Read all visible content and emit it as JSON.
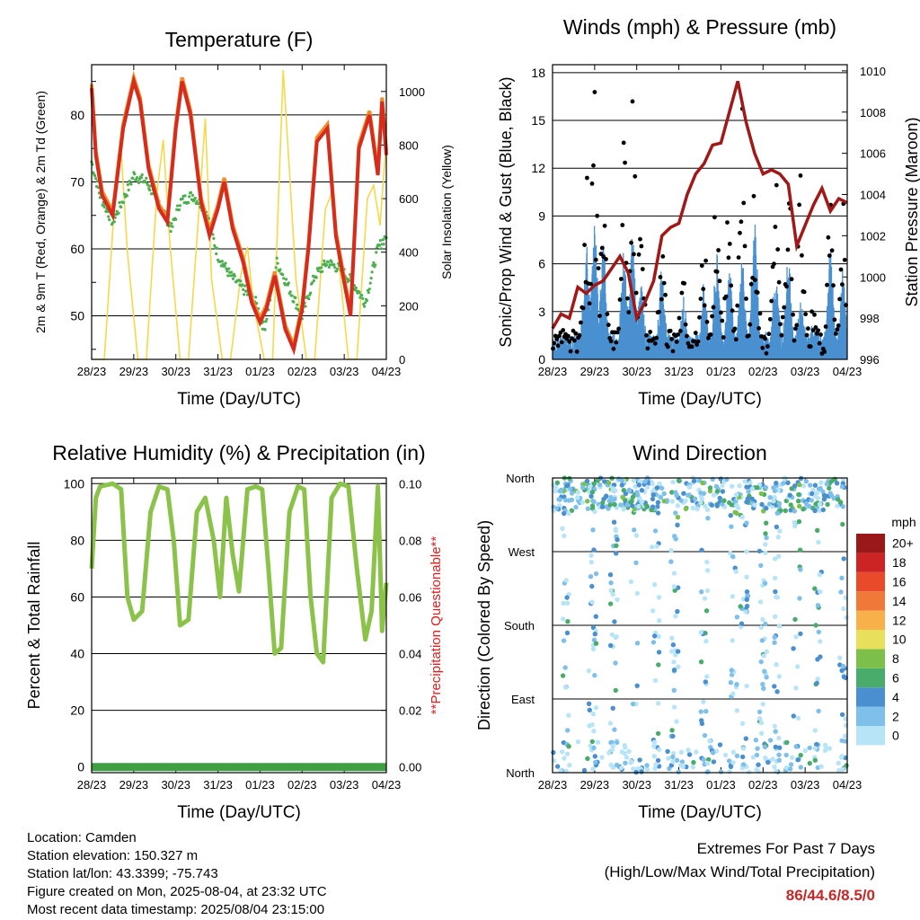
{
  "chart_data": [
    {
      "type": "line",
      "title": "Temperature (F)",
      "xlabel": "Time (Day/UTC)",
      "ylabel": "2m & 9m T (Red, Orange) & 2m Td (Green)",
      "y2label": "Solar Insolation (Yellow)",
      "x_ticks": [
        "28/23",
        "29/23",
        "30/23",
        "31/23",
        "01/23",
        "02/23",
        "03/23",
        "04/23"
      ],
      "ylim": [
        43.5,
        87.5
      ],
      "y_ticks": [
        50,
        60,
        70,
        80
      ],
      "y2lim": [
        0,
        1100
      ],
      "y2_ticks": [
        0,
        200,
        400,
        600,
        800,
        1000
      ],
      "colors": {
        "temp2m": "#d62c1e",
        "temp9m": "#f28c28",
        "dewpoint": "#4caf50",
        "solar": "#f5d94a"
      },
      "series": [
        {
          "key": "temp2m",
          "x": [
            0,
            0.1,
            0.25,
            0.5,
            0.75,
            1.0,
            1.15,
            1.35,
            1.6,
            1.8,
            2.0,
            2.15,
            2.35,
            2.6,
            2.8,
            3.0,
            3.15,
            3.35,
            3.6,
            3.8,
            4.0,
            4.15,
            4.35,
            4.6,
            4.8,
            5.0,
            5.15,
            5.35,
            5.6,
            5.8,
            6.0,
            6.15,
            6.35,
            6.6,
            6.8,
            6.9,
            7.0
          ],
          "values": [
            84,
            74,
            68,
            65,
            78,
            85,
            82,
            72,
            66,
            64,
            78,
            85,
            80,
            67,
            62,
            66,
            70,
            63,
            58,
            52,
            49,
            51,
            56,
            48,
            45,
            51,
            60,
            76,
            78,
            62,
            55,
            50,
            75,
            80,
            71,
            82,
            74
          ]
        },
        {
          "key": "dewpoint",
          "x": [
            0,
            0.2,
            0.5,
            0.8,
            1.0,
            1.3,
            1.6,
            1.9,
            2.1,
            2.4,
            2.7,
            3.0,
            3.3,
            3.6,
            3.9,
            4.1,
            4.4,
            4.7,
            5.0,
            5.3,
            5.6,
            5.9,
            6.2,
            6.5,
            6.8,
            7.0
          ],
          "values": [
            73,
            68,
            64,
            68,
            71,
            70,
            67,
            63,
            67,
            68,
            66,
            59,
            56,
            54,
            52,
            48,
            58,
            54,
            50,
            56,
            58,
            57,
            55,
            52,
            60,
            62
          ]
        },
        {
          "key": "solar",
          "x": [
            0,
            0.3,
            0.55,
            0.7,
            0.85,
            1.1,
            1.3,
            1.55,
            1.7,
            1.85,
            2.1,
            2.3,
            2.55,
            2.7,
            2.85,
            3.1,
            3.3,
            3.55,
            3.7,
            3.85,
            4.1,
            4.3,
            4.55,
            4.7,
            4.85,
            5.1,
            5.3,
            5.55,
            5.7,
            5.85,
            6.1,
            6.3,
            6.55,
            6.7,
            6.85,
            7.0
          ],
          "values": [
            0,
            0,
            600,
            780,
            400,
            0,
            0,
            620,
            820,
            450,
            0,
            0,
            560,
            900,
            300,
            0,
            0,
            320,
            420,
            200,
            0,
            0,
            1080,
            700,
            300,
            0,
            0,
            560,
            620,
            400,
            0,
            0,
            600,
            650,
            500,
            820
          ]
        }
      ]
    },
    {
      "type": "scatter",
      "title": "Winds (mph) & Pressure (mb)",
      "xlabel": "Time (Day/UTC)",
      "ylabel": "Sonic/Prop Wind & Gust (Blue, Black)",
      "y2label": "Station Pressure (Maroon)",
      "x_ticks": [
        "28/23",
        "29/23",
        "30/23",
        "31/23",
        "01/23",
        "02/23",
        "03/23",
        "04/23"
      ],
      "ylim": [
        0,
        18.5
      ],
      "y_ticks": [
        0,
        3,
        6,
        9,
        12,
        15,
        18
      ],
      "y2lim": [
        996,
        1010.3
      ],
      "y2_ticks": [
        996,
        998,
        1000,
        1002,
        1004,
        1006,
        1008,
        1010
      ],
      "colors": {
        "wind": "#4a90d0",
        "gust": "#000000",
        "pressure": "#a01818"
      },
      "series": [
        {
          "key": "pressure",
          "x": [
            0,
            0.2,
            0.4,
            0.6,
            0.8,
            1.0,
            1.2,
            1.4,
            1.6,
            1.8,
            2.0,
            2.2,
            2.4,
            2.6,
            2.8,
            3.0,
            3.2,
            3.4,
            3.6,
            3.8,
            4.0,
            4.2,
            4.4,
            4.6,
            4.8,
            5.0,
            5.2,
            5.4,
            5.6,
            5.8,
            6.0,
            6.2,
            6.4,
            6.6,
            6.8,
            7.0
          ],
          "values": [
            997.5,
            998.2,
            998.0,
            999.5,
            999.2,
            999.6,
            999.8,
            1000.4,
            1001.0,
            1000.2,
            998.0,
            998.8,
            999.8,
            1002.0,
            1002.4,
            1002.6,
            1004.0,
            1005.0,
            1005.5,
            1006.4,
            1006.5,
            1008.0,
            1009.5,
            1007.5,
            1006.0,
            1005.0,
            1005.2,
            1005.0,
            1004.5,
            1001.5,
            1002.5,
            1003.5,
            1004.3,
            1003.2,
            1003.8,
            1003.6
          ]
        },
        {
          "key": "wind_peaks",
          "x": [
            0.8,
            1.0,
            1.2,
            1.7,
            1.9,
            2.1,
            2.6,
            3.1,
            3.6,
            3.9,
            4.2,
            4.5,
            4.8,
            5.3,
            5.6,
            5.9,
            6.2,
            6.6,
            6.9
          ],
          "values": [
            7,
            8,
            7,
            6,
            7,
            4,
            5,
            3,
            4,
            6,
            5,
            6,
            8,
            5,
            6,
            3,
            1.5,
            6,
            5
          ]
        },
        {
          "key": "gust_peaks",
          "x": [
            0.8,
            1.0,
            1.2,
            1.7,
            1.9,
            2.1,
            2.6,
            3.1,
            3.6,
            3.9,
            4.2,
            4.5,
            4.8,
            5.3,
            5.6,
            5.9,
            6.2,
            6.6,
            6.9
          ],
          "values": [
            12,
            15.6,
            12,
            14,
            16.4,
            9,
            8,
            5,
            7,
            13,
            11,
            15,
            13,
            11,
            12,
            14,
            3,
            10,
            10
          ]
        }
      ]
    },
    {
      "type": "line",
      "title": "Relative Humidity (%) & Precipitation (in)",
      "xlabel": "Time (Day/UTC)",
      "ylabel": "Percent & Total Rainfall",
      "y2label": "**Precipitation Questionable**",
      "x_ticks": [
        "28/23",
        "29/23",
        "30/23",
        "31/23",
        "01/23",
        "02/23",
        "03/23",
        "04/23"
      ],
      "ylim": [
        -2,
        102
      ],
      "y_ticks": [
        0,
        20,
        40,
        60,
        80,
        100
      ],
      "y2lim": [
        0,
        0.1
      ],
      "y2_ticks": [
        "0.00",
        "0.02",
        "0.04",
        "0.06",
        "0.08",
        "0.10"
      ],
      "colors": {
        "rh": "#8bc34a",
        "precip": "#3fa043",
        "warning": "#e02020"
      },
      "series": [
        {
          "key": "rh",
          "x": [
            0,
            0.1,
            0.2,
            0.5,
            0.7,
            0.85,
            1.0,
            1.2,
            1.4,
            1.6,
            1.8,
            1.95,
            2.1,
            2.3,
            2.5,
            2.7,
            2.9,
            3.05,
            3.2,
            3.35,
            3.5,
            3.7,
            3.9,
            4.05,
            4.2,
            4.35,
            4.5,
            4.7,
            4.9,
            5.05,
            5.2,
            5.35,
            5.5,
            5.7,
            5.9,
            6.1,
            6.3,
            6.5,
            6.65,
            6.8,
            6.9,
            7.0
          ],
          "values": [
            70,
            95,
            99,
            100,
            98,
            60,
            52,
            55,
            90,
            99,
            98,
            80,
            50,
            52,
            90,
            95,
            80,
            60,
            95,
            75,
            62,
            98,
            99,
            98,
            70,
            40,
            42,
            90,
            99,
            98,
            60,
            40,
            37,
            95,
            100,
            99,
            70,
            45,
            55,
            99,
            48,
            65
          ]
        },
        {
          "key": "precip",
          "x": [
            0,
            7.0
          ],
          "values": [
            0,
            0
          ]
        }
      ]
    },
    {
      "type": "scatter",
      "title": "Wind Direction",
      "xlabel": "Time (Day/UTC)",
      "ylabel": "Direction (Colored By Speed)",
      "x_ticks": [
        "28/23",
        "29/23",
        "30/23",
        "31/23",
        "01/23",
        "02/23",
        "03/23",
        "04/23"
      ],
      "y_ticks": [
        "North",
        "East",
        "South",
        "West",
        "North"
      ],
      "ylim": [
        0,
        360
      ],
      "colorbar": {
        "unit": "mph",
        "labels": [
          "0",
          "2",
          "4",
          "6",
          "8",
          "10",
          "12",
          "14",
          "16",
          "18",
          "20+"
        ],
        "colors": [
          "#b8e4f8",
          "#7ec0ea",
          "#4a8fcf",
          "#4aac6a",
          "#7cc04a",
          "#e8e05a",
          "#f8b04a",
          "#f07838",
          "#e84a2a",
          "#cc2424",
          "#9a1818"
        ]
      }
    }
  ],
  "info": {
    "location": "Location: Camden",
    "elevation": "Station elevation: 150.327 m",
    "latlon": "Station lat/lon: 43.3399; -75.743",
    "created": "Figure created on Mon, 2025-08-04, at 23:32 UTC",
    "recent": "Most recent data timestamp: 2025/08/04 23:15:00"
  },
  "extremes": {
    "title": "Extremes For Past 7 Days",
    "subtitle": "(High/Low/Max Wind/Total Precipitation)",
    "values": "86/44.6/8.5/0"
  }
}
